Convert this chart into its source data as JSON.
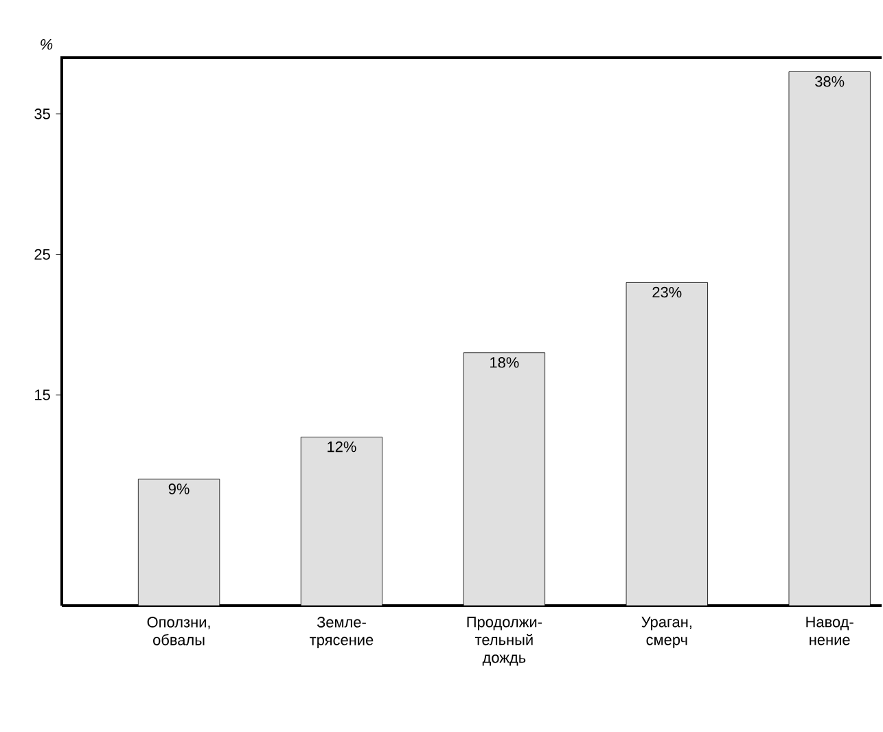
{
  "chart_data": {
    "type": "bar",
    "ylabel": "%",
    "categories": [
      "Оползни, обвалы",
      "Земле- трясение",
      "Продолжи- тельный дождь",
      "Ураган, смерч",
      "Навод- нение"
    ],
    "values": [
      9,
      12,
      18,
      23,
      38
    ],
    "value_labels": [
      "9%",
      "12%",
      "18%",
      "23%",
      "38%"
    ],
    "color": "#e0e0e0",
    "ylim": [
      0,
      39
    ],
    "yticks": [
      15,
      25,
      35
    ]
  }
}
